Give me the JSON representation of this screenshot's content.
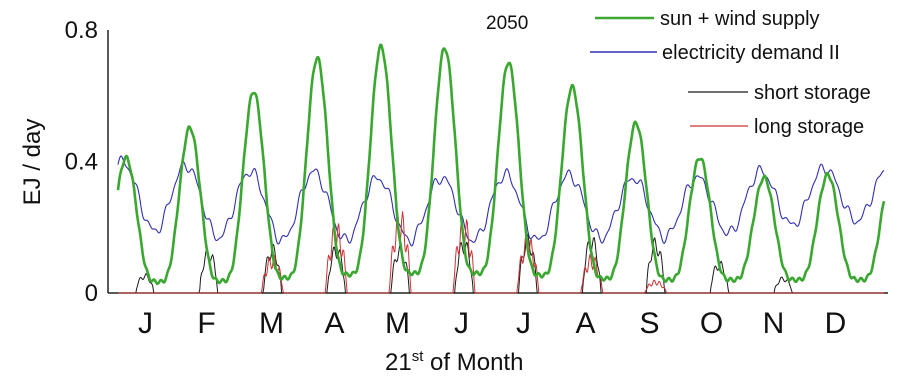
{
  "chart_data": {
    "type": "line",
    "title": "2050",
    "ylabel": "EJ / day",
    "xlabel_main": "21",
    "xlabel_sup": "st",
    "xlabel_rest": " of Month",
    "ylim": [
      0,
      0.8
    ],
    "y_ticks": [
      "0",
      "0.4",
      "0.8"
    ],
    "y_tick_values": [
      0,
      0.4,
      0.8
    ],
    "month_labels": [
      "J",
      "F",
      "M",
      "A",
      "M",
      "J",
      "J",
      "A",
      "S",
      "O",
      "N",
      "D"
    ],
    "legend_position": "top-right",
    "series": [
      {
        "name": "sun + wind supply",
        "color": "#3aa830",
        "peaks": [
          0.4,
          0.49,
          0.6,
          0.71,
          0.75,
          0.75,
          0.71,
          0.64,
          0.53,
          0.42,
          0.35,
          0.36
        ],
        "troughs": [
          0.04,
          0.03,
          0.04,
          0.05,
          0.06,
          0.06,
          0.06,
          0.05,
          0.04,
          0.04,
          0.04,
          0.04
        ]
      },
      {
        "name": "electricity demand II",
        "color": "#3030b0",
        "peaks": [
          0.4,
          0.39,
          0.37,
          0.37,
          0.35,
          0.35,
          0.36,
          0.36,
          0.35,
          0.35,
          0.37,
          0.38
        ],
        "troughs": [
          0.2,
          0.18,
          0.16,
          0.16,
          0.16,
          0.16,
          0.16,
          0.16,
          0.17,
          0.17,
          0.19,
          0.22
        ]
      },
      {
        "name": "short storage",
        "color": "#1a1a1a",
        "values": [
          0.06,
          0.14,
          0.15,
          0.15,
          0.15,
          0.17,
          0.18,
          0.18,
          0.17,
          0.1,
          0.05,
          0.0
        ]
      },
      {
        "name": "long storage",
        "color": "#cc3333",
        "values": [
          0.0,
          0.0,
          0.12,
          0.22,
          0.26,
          0.24,
          0.18,
          0.12,
          0.04,
          0.0,
          0.0,
          0.0
        ]
      }
    ]
  }
}
